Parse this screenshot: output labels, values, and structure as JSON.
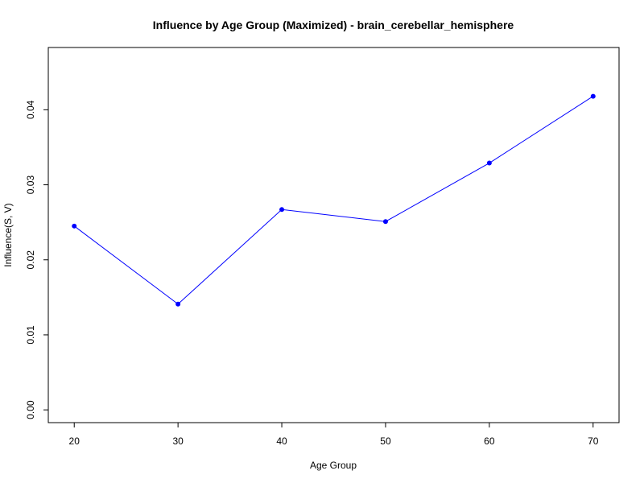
{
  "chart_data": {
    "type": "line",
    "title": "Influence by Age Group (Maximized) - brain_cerebellar_hemisphere",
    "xlabel": "Age Group",
    "ylabel": "Influence(S, V)",
    "x": [
      20,
      30,
      40,
      50,
      60,
      70
    ],
    "series": [
      {
        "values": [
          0.0245,
          0.0141,
          0.0267,
          0.0251,
          0.0329,
          0.0418
        ],
        "color": "#0000ff"
      }
    ],
    "xlim": [
      17.5,
      72.5
    ],
    "ylim": [
      -0.0017,
      0.0483
    ],
    "xticks": [
      20,
      30,
      40,
      50,
      60,
      70
    ],
    "yticks": [
      0.0,
      0.01,
      0.02,
      0.03,
      0.04
    ],
    "ytick_labels": [
      "0.00",
      "0.01",
      "0.02",
      "0.03",
      "0.04"
    ],
    "grid": false,
    "legend": "none"
  }
}
